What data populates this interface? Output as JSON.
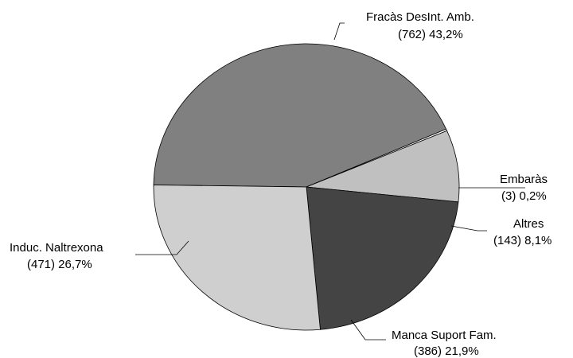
{
  "chart_data": {
    "type": "pie",
    "slices": [
      {
        "name": "Fracàs DesInt. Amb.",
        "count": 762,
        "pct_label": "43,2%",
        "value": 43.2,
        "color": "#808080"
      },
      {
        "name": "Embaràs",
        "count": 3,
        "pct_label": "0,2%",
        "value": 0.2,
        "color": "#ffffff"
      },
      {
        "name": "Altres",
        "count": 143,
        "pct_label": "8,1%",
        "value": 8.1,
        "color": "#c0c0c0"
      },
      {
        "name": "Manca Suport Fam.",
        "count": 386,
        "pct_label": "21,9%",
        "value": 21.9,
        "color": "#444444"
      },
      {
        "name": "Induc. Naltrexona",
        "count": 471,
        "pct_label": "26,7%",
        "value": 26.7,
        "color": "#cfcfcf"
      }
    ],
    "labels": [
      {
        "line1": "Fracàs DesInt. Amb.",
        "line2": "(762)  43,2%"
      },
      {
        "line1": "Embaràs",
        "line2": "(3)  0,2%"
      },
      {
        "line1": "Altres",
        "line2": "(143)  8,1%"
      },
      {
        "line1": "Manca Suport Fam.",
        "line2": "(386)  21,9%"
      },
      {
        "line1": "Induc. Naltrexona",
        "line2": "(471)  26,7%"
      }
    ]
  }
}
